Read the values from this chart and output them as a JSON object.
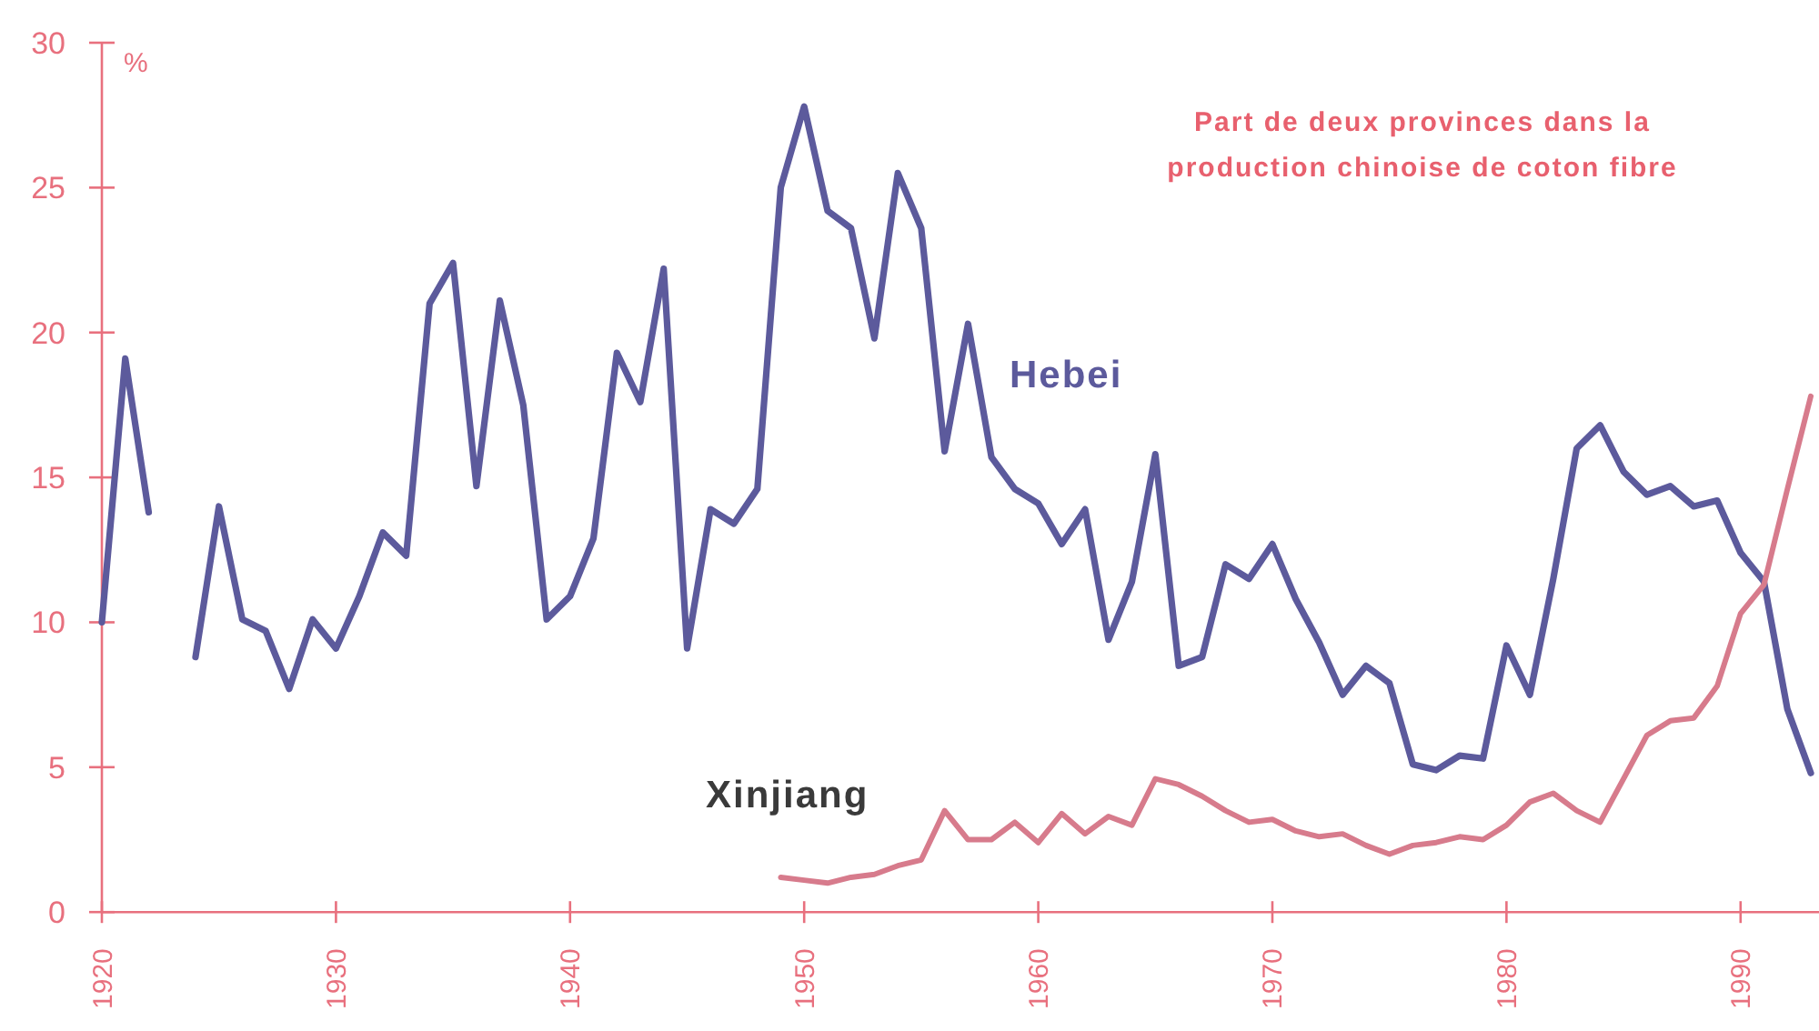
{
  "chart_data": {
    "type": "line",
    "title": "Part de deux provinces dans la\nproduction chinoise de coton fibre",
    "ylabel": "%",
    "xlim": [
      1920,
      1993.35
    ],
    "ylim": [
      0,
      30
    ],
    "xticks": [
      1920,
      1930,
      1940,
      1950,
      1960,
      1970,
      1980,
      1990
    ],
    "yticks": [
      0,
      5,
      10,
      15,
      20,
      25,
      30
    ],
    "x": [
      1920,
      1921,
      1922,
      1923,
      1924,
      1925,
      1926,
      1927,
      1928,
      1929,
      1930,
      1931,
      1932,
      1933,
      1934,
      1935,
      1936,
      1937,
      1938,
      1939,
      1940,
      1941,
      1942,
      1943,
      1944,
      1945,
      1946,
      1947,
      1948,
      1949,
      1950,
      1951,
      1952,
      1953,
      1954,
      1955,
      1956,
      1957,
      1958,
      1959,
      1960,
      1961,
      1962,
      1963,
      1964,
      1965,
      1966,
      1967,
      1968,
      1969,
      1970,
      1971,
      1972,
      1973,
      1974,
      1975,
      1976,
      1977,
      1978,
      1979,
      1980,
      1981,
      1982,
      1983,
      1984,
      1985,
      1986,
      1987,
      1988,
      1989,
      1990,
      1991,
      1992,
      1993
    ],
    "series": [
      {
        "name": "Hebei",
        "color": "#5c5a9c",
        "values": [
          10.0,
          19.1,
          13.8,
          null,
          8.8,
          14.0,
          10.1,
          9.7,
          7.7,
          10.1,
          9.1,
          10.9,
          13.1,
          12.3,
          21.0,
          22.4,
          14.7,
          21.1,
          17.5,
          10.1,
          10.9,
          12.9,
          19.3,
          17.6,
          22.2,
          9.1,
          13.9,
          13.4,
          14.6,
          25.0,
          27.8,
          24.2,
          23.6,
          19.8,
          25.5,
          23.6,
          15.9,
          20.3,
          15.7,
          14.6,
          14.1,
          12.7,
          13.9,
          9.4,
          11.4,
          15.8,
          8.5,
          8.8,
          12.0,
          11.5,
          12.7,
          10.8,
          9.3,
          7.5,
          8.5,
          7.9,
          5.1,
          4.9,
          5.4,
          5.3,
          9.2,
          7.5,
          11.5,
          16.0,
          16.8,
          15.2,
          14.4,
          14.7,
          14.0,
          14.2,
          12.4,
          11.4,
          7.0,
          4.8
        ]
      },
      {
        "name": "Xinjiang",
        "color": "#d77b8c",
        "x": [
          1949,
          1950,
          1951,
          1952,
          1953,
          1954,
          1955,
          1956,
          1957,
          1958,
          1959,
          1960,
          1961,
          1962,
          1963,
          1964,
          1965,
          1966,
          1967,
          1968,
          1969,
          1970,
          1971,
          1972,
          1973,
          1974,
          1975,
          1976,
          1977,
          1978,
          1979,
          1980,
          1981,
          1982,
          1983,
          1984,
          1985,
          1986,
          1987,
          1988,
          1989,
          1990,
          1991,
          1992,
          1993
        ],
        "values": [
          1.2,
          1.1,
          1.0,
          1.2,
          1.3,
          1.6,
          1.8,
          3.5,
          2.5,
          2.5,
          3.1,
          2.4,
          3.4,
          2.7,
          3.3,
          3.0,
          4.6,
          4.4,
          4.0,
          3.5,
          3.1,
          3.2,
          2.8,
          2.6,
          2.7,
          2.3,
          2.0,
          2.3,
          2.4,
          2.6,
          2.5,
          3.0,
          3.8,
          4.1,
          3.5,
          3.1,
          4.6,
          6.1,
          6.6,
          6.7,
          7.8,
          10.3,
          11.3,
          14.6,
          17.8
        ]
      }
    ]
  }
}
